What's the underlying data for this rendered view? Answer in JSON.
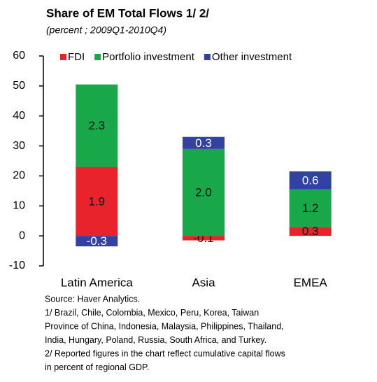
{
  "chart_data": {
    "type": "bar",
    "stacked": true,
    "title": "Share of EM Total Flows 1/ 2/",
    "subtitle": "(percent ; 2009Q1-2010Q4)",
    "categories": [
      "Latin America",
      "Asia",
      "EMEA"
    ],
    "series": [
      {
        "name": "FDI",
        "color": "#e8232b",
        "values": [
          23,
          -1.5,
          3
        ],
        "labels": [
          "1.9",
          "-0.1",
          "0.3"
        ]
      },
      {
        "name": "Portfolio investment",
        "color": "#18a84a",
        "values": [
          27.5,
          29,
          12.5
        ],
        "labels": [
          "2.3",
          "2.0",
          "1.2"
        ]
      },
      {
        "name": "Other investment",
        "color": "#3142a0",
        "values": [
          -3.5,
          4,
          6
        ],
        "labels": [
          "-0.3",
          "0.3",
          "0.6"
        ]
      }
    ],
    "ylim": [
      -10,
      60
    ],
    "yticks": [
      -10,
      0,
      10,
      20,
      30,
      40,
      50,
      60
    ],
    "notes": [
      "Source: Haver Analytics.",
      "1/ Brazil,  Chile,  Colombia,  Mexico,  Peru,  Korea,  Taiwan",
      "Province of China,  Indonesia,  Malaysia,  Philippines,  Thailand,",
      "India, Hungary, Poland, Russia, South Africa, and Turkey.",
      "2/ Reported figures in the chart reflect cumulative capital flows",
      "in percent of regional GDP."
    ]
  }
}
